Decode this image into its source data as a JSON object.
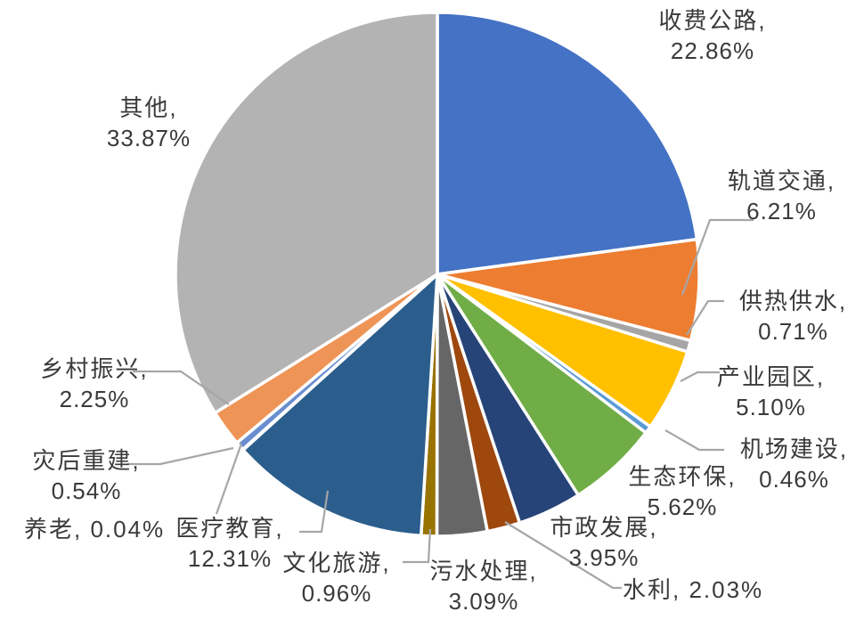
{
  "figure": {
    "background": "#FFFFFF",
    "label_color": "#3A3A3A",
    "leader_line_color": "#A6A6A6",
    "slice_border_color": "#FFFFFF"
  },
  "chart_data": {
    "type": "pie",
    "unit": "%",
    "start_angle_deg": 0,
    "direction": "clockwise",
    "legend": "none",
    "segments": [
      {
        "label": "收费公路",
        "value": 22.86,
        "label_text": "收费公路,",
        "pct_text": "22.86%",
        "color": "#4472C4"
      },
      {
        "label": "轨道交通",
        "value": 6.21,
        "label_text": "轨道交通,",
        "pct_text": "6.21%",
        "color": "#ED7D31"
      },
      {
        "label": "供热供水",
        "value": 0.71,
        "label_text": "供热供水,",
        "pct_text": "0.71%",
        "color": "#A5A5A5"
      },
      {
        "label": "产业园区",
        "value": 5.1,
        "label_text": "产业园区,",
        "pct_text": "5.10%",
        "color": "#FFC000"
      },
      {
        "label": "机场建设",
        "value": 0.46,
        "label_text": "机场建设,",
        "pct_text": "0.46%",
        "color": "#5B9BD5"
      },
      {
        "label": "生态环保",
        "value": 5.62,
        "label_text": "生态环保,",
        "pct_text": "5.62%",
        "color": "#70AD47"
      },
      {
        "label": "市政发展",
        "value": 3.95,
        "label_text": "市政发展,",
        "pct_text": "3.95%",
        "color": "#264478"
      },
      {
        "label": "水利",
        "value": 2.03,
        "text": "水利, 2.03%",
        "pct_text": "2.03%",
        "color": "#9E480E"
      },
      {
        "label": "污水处理",
        "value": 3.09,
        "label_text": "污水处理,",
        "pct_text": "3.09%",
        "color": "#666666"
      },
      {
        "label": "文化旅游",
        "value": 0.96,
        "label_text": "文化旅游,",
        "pct_text": "0.96%",
        "color": "#997300"
      },
      {
        "label": "医疗教育",
        "value": 12.31,
        "label_text": "医疗教育,",
        "pct_text": "12.31%",
        "color": "#2B5E8C"
      },
      {
        "label": "养老",
        "value": 0.04,
        "text": "养老, 0.04%",
        "pct_text": "0.04%",
        "color": "#43682B"
      },
      {
        "label": "灾后重建",
        "value": 0.54,
        "label_text": "灾后重建,",
        "pct_text": "0.54%",
        "color": "#698ED0"
      },
      {
        "label": "乡村振兴",
        "value": 2.25,
        "label_text": "乡村振兴,",
        "pct_text": "2.25%",
        "color": "#EE9456"
      },
      {
        "label": "其他",
        "value": 33.87,
        "label_text": "其他,",
        "pct_text": "33.87%",
        "color": "#B3B3B3"
      }
    ]
  }
}
